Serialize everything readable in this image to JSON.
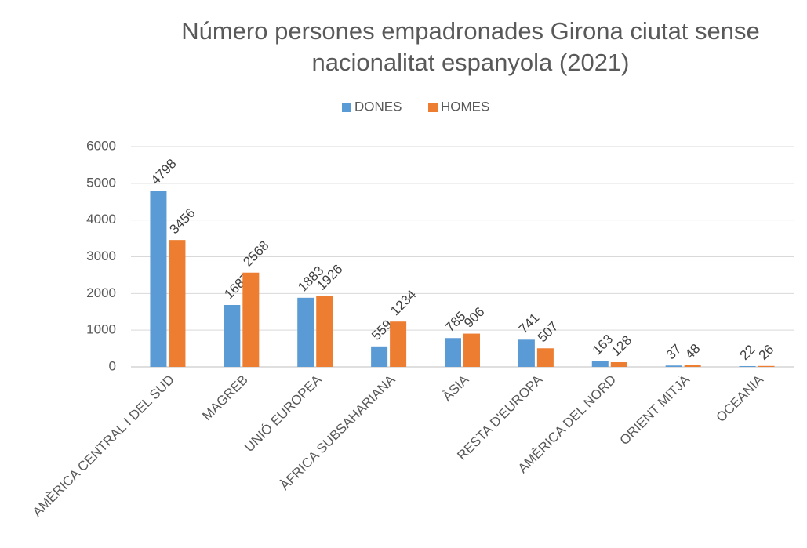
{
  "chart_data": {
    "type": "bar",
    "title": [
      "Número persones empadronades Girona ciutat sense",
      "nacionalitat espanyola (2021)"
    ],
    "categories": [
      "AMÈRICA CENTRAL I DEL SUD",
      "MAGREB",
      "UNIÓ EUROPEA",
      "ÀFRICA SUBSAHARIANA",
      "ÀSIA",
      "RESTA D'EUROPA",
      "AMÈRICA DEL NORD",
      "ORIENT MITJÀ",
      "OCEANIA"
    ],
    "series": [
      {
        "name": "DONES",
        "color": "#5b9bd5",
        "values": [
          4798,
          1687,
          1883,
          559,
          785,
          741,
          163,
          37,
          22
        ]
      },
      {
        "name": "HOMES",
        "color": "#ed7d31",
        "values": [
          3456,
          2568,
          1926,
          1234,
          906,
          507,
          128,
          48,
          26
        ]
      }
    ],
    "ylim": [
      0,
      6000
    ],
    "yticks": [
      0,
      1000,
      2000,
      3000,
      4000,
      5000,
      6000
    ],
    "grid": true,
    "legend": "top"
  }
}
